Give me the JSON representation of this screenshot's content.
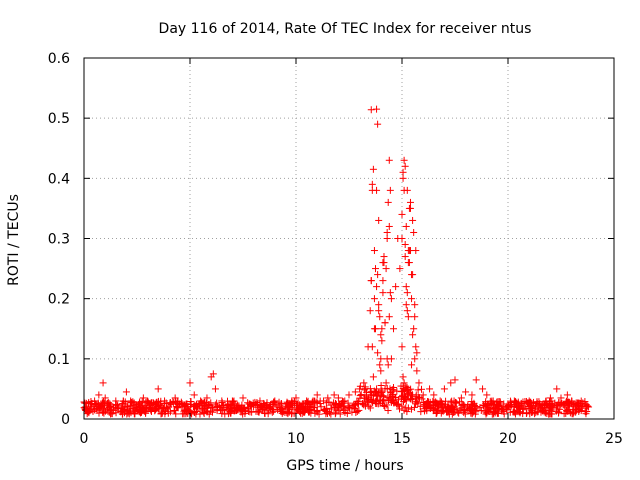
{
  "chart_data": {
    "type": "scatter",
    "title": "Day 116 of 2014, Rate Of TEC Index for receiver ntus",
    "xlabel": "GPS time / hours",
    "ylabel": "ROTI / TECUs",
    "xlim": [
      0,
      25
    ],
    "ylim": [
      0,
      0.6
    ],
    "xticks": [
      0,
      5,
      10,
      15,
      20,
      25
    ],
    "xtick_labels": [
      "0",
      "5",
      "10",
      "15",
      "20",
      "25"
    ],
    "yticks": [
      0,
      0.1,
      0.2,
      0.3,
      0.4,
      0.5,
      0.6
    ],
    "ytick_labels": [
      "0",
      "0.1",
      "0.2",
      "0.3",
      "0.4",
      "0.5",
      "0.6"
    ],
    "grid": true,
    "marker": "+",
    "color": "#ff0000",
    "series": [
      {
        "name": "ROTI",
        "x": [
          0.1,
          0.3,
          0.5,
          0.7,
          0.9,
          1.0,
          1.2,
          1.5,
          1.8,
          2.0,
          2.2,
          2.5,
          2.8,
          3.0,
          3.3,
          3.5,
          3.8,
          4.0,
          4.3,
          4.5,
          4.8,
          5.0,
          5.2,
          5.5,
          5.8,
          6.0,
          6.1,
          6.2,
          6.5,
          6.8,
          7.0,
          7.3,
          7.5,
          7.8,
          8.0,
          8.3,
          8.5,
          8.8,
          9.0,
          9.3,
          9.5,
          9.8,
          10.0,
          10.3,
          10.5,
          10.8,
          11.0,
          11.3,
          11.5,
          11.8,
          12.0,
          12.3,
          12.5,
          12.8,
          13.0,
          13.2,
          13.4,
          13.5,
          13.55,
          13.6,
          13.65,
          13.7,
          13.75,
          13.8,
          13.85,
          13.9,
          13.95,
          14.0,
          14.05,
          14.1,
          14.15,
          14.2,
          14.25,
          14.3,
          14.35,
          14.4,
          14.45,
          14.5,
          14.6,
          14.7,
          14.8,
          14.9,
          15.0,
          15.05,
          15.1,
          15.15,
          15.2,
          15.25,
          15.3,
          15.35,
          15.4,
          15.45,
          15.5,
          15.55,
          15.6,
          15.7,
          15.8,
          16.0,
          16.3,
          16.5,
          16.8,
          17.0,
          17.3,
          17.5,
          17.8,
          18.0,
          18.3,
          18.5,
          18.8,
          19.0,
          19.3,
          19.5,
          19.8,
          20.0,
          20.3,
          20.5,
          20.8,
          21.0,
          21.3,
          21.5,
          21.8,
          22.0,
          22.3,
          22.5,
          22.8,
          23.0,
          23.3,
          23.5,
          23.8,
          13.6,
          13.7,
          13.8,
          13.9,
          14.0,
          14.1,
          14.2,
          14.3,
          14.4,
          14.5,
          15.0,
          15.1,
          15.2,
          15.3,
          15.4,
          15.5,
          15.6,
          15.7,
          13.75,
          13.85,
          14.05,
          14.15,
          14.35,
          14.45,
          15.05,
          15.15,
          15.25,
          15.35,
          15.45,
          15.55,
          15.65,
          13.65,
          13.95,
          14.25,
          15.0,
          15.2,
          15.4,
          13.55,
          13.7,
          14.0,
          14.3,
          15.1,
          15.3,
          15.5,
          15.65,
          13.8,
          14.1,
          14.2,
          15.05,
          15.25,
          15.45,
          13.6,
          13.9,
          14.4,
          15.15,
          15.35,
          15.6
        ],
        "y": [
          0.015,
          0.02,
          0.03,
          0.04,
          0.06,
          0.035,
          0.02,
          0.03,
          0.025,
          0.045,
          0.03,
          0.02,
          0.035,
          0.03,
          0.025,
          0.05,
          0.03,
          0.02,
          0.035,
          0.025,
          0.02,
          0.06,
          0.04,
          0.03,
          0.035,
          0.07,
          0.075,
          0.05,
          0.03,
          0.025,
          0.03,
          0.02,
          0.035,
          0.025,
          0.02,
          0.03,
          0.025,
          0.02,
          0.03,
          0.025,
          0.02,
          0.03,
          0.035,
          0.025,
          0.03,
          0.03,
          0.04,
          0.03,
          0.035,
          0.04,
          0.035,
          0.03,
          0.04,
          0.045,
          0.05,
          0.06,
          0.12,
          0.18,
          0.23,
          0.38,
          0.415,
          0.28,
          0.25,
          0.38,
          0.24,
          0.19,
          0.17,
          0.1,
          0.15,
          0.21,
          0.26,
          0.16,
          0.25,
          0.3,
          0.36,
          0.43,
          0.38,
          0.2,
          0.15,
          0.22,
          0.3,
          0.25,
          0.34,
          0.4,
          0.43,
          0.42,
          0.32,
          0.38,
          0.26,
          0.28,
          0.35,
          0.2,
          0.24,
          0.15,
          0.1,
          0.08,
          0.06,
          0.04,
          0.05,
          0.04,
          0.03,
          0.05,
          0.06,
          0.065,
          0.035,
          0.045,
          0.04,
          0.065,
          0.05,
          0.04,
          0.03,
          0.02,
          0.025,
          0.02,
          0.03,
          0.025,
          0.02,
          0.03,
          0.02,
          0.025,
          0.03,
          0.035,
          0.05,
          0.035,
          0.04,
          0.03,
          0.025,
          0.02,
          0.02,
          0.12,
          0.2,
          0.22,
          0.18,
          0.14,
          0.26,
          0.16,
          0.1,
          0.32,
          0.1,
          0.3,
          0.38,
          0.22,
          0.17,
          0.28,
          0.33,
          0.19,
          0.11,
          0.15,
          0.11,
          0.13,
          0.27,
          0.09,
          0.21,
          0.07,
          0.27,
          0.18,
          0.35,
          0.24,
          0.31,
          0.12,
          0.07,
          0.09,
          0.06,
          0.12,
          0.19,
          0.36,
          0.23,
          0.15,
          0.08,
          0.31,
          0.06,
          0.28,
          0.14,
          0.28,
          0.05,
          0.23,
          0.05,
          0.41,
          0.21,
          0.09,
          0.39,
          0.33,
          0.17,
          0.29,
          0.26,
          0.17
        ],
        "outliers_x": [
          13.55,
          13.8,
          13.85
        ],
        "outliers_y": [
          0.514,
          0.515,
          0.49
        ]
      }
    ]
  }
}
